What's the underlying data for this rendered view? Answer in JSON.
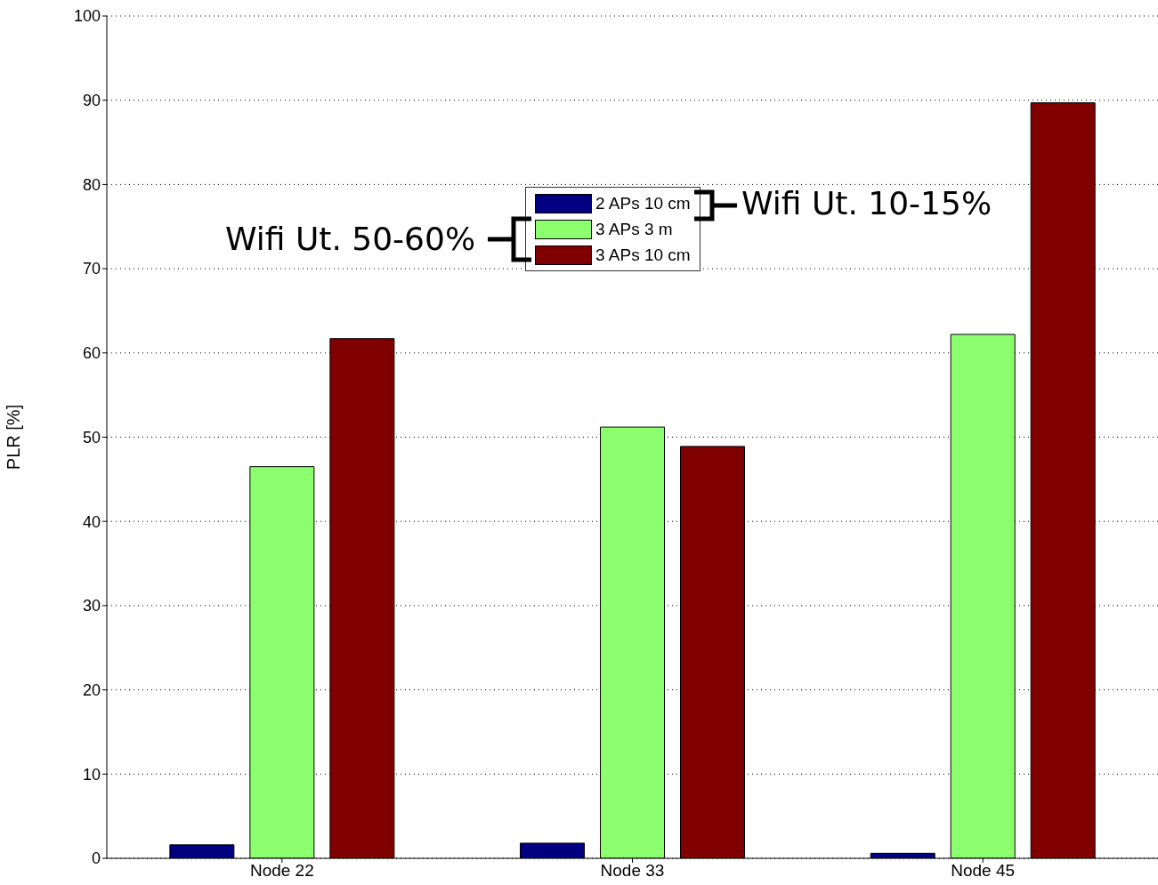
{
  "chart_data": {
    "type": "bar",
    "ylabel": "PLR [%]",
    "categories": [
      "Node 22",
      "Node 33",
      "Node 45"
    ],
    "series": [
      {
        "name": "2 APs 10 cm",
        "color": "#000080",
        "values": [
          1.6,
          1.8,
          0.6
        ]
      },
      {
        "name": "3 APs 3 m",
        "color": "#8cff6e",
        "values": [
          46.5,
          51.2,
          62.2
        ]
      },
      {
        "name": "3 APs 10 cm",
        "color": "#800000",
        "values": [
          61.7,
          48.9,
          89.7
        ]
      }
    ],
    "ylim": [
      0,
      100
    ],
    "yticks": [
      0,
      10,
      20,
      30,
      40,
      50,
      60,
      70,
      80,
      90,
      100
    ],
    "grid": "y",
    "legend": "top",
    "annotations": [
      "Wifi Ut. 10-15%",
      "Wifi Ut. 50-60%"
    ]
  }
}
